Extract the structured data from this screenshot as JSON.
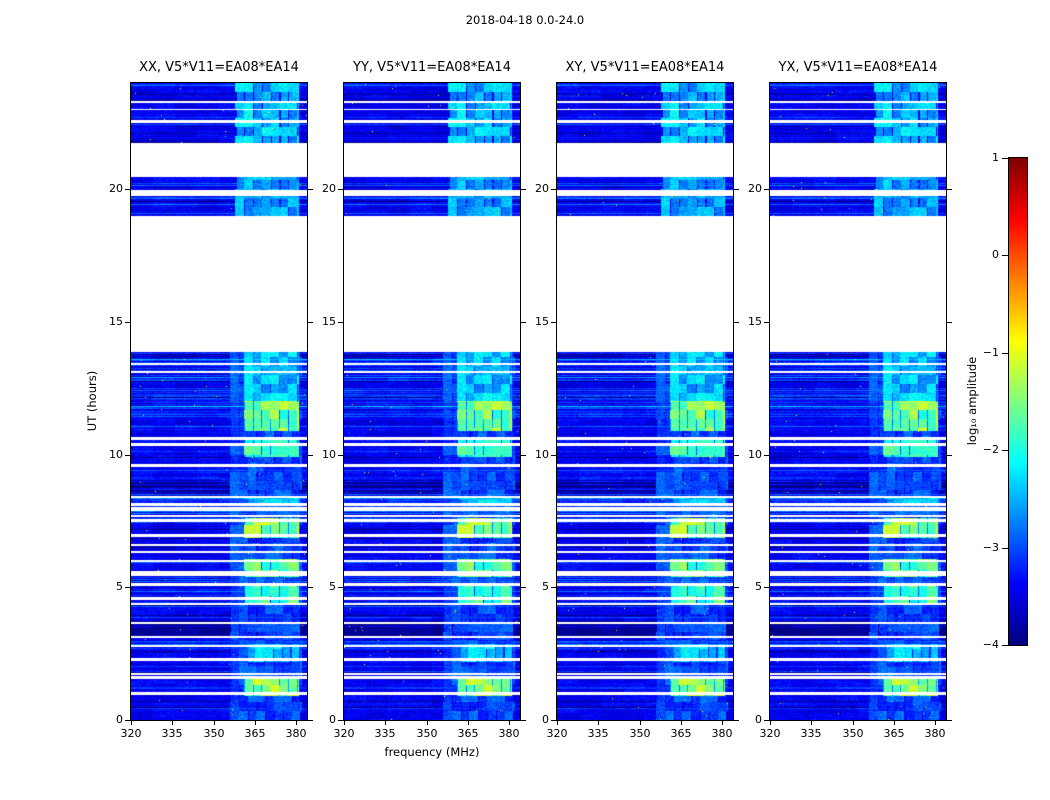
{
  "chart_data": {
    "type": "heatmap",
    "title": "2018-04-18 0.0-24.0",
    "xlabel": "frequency (MHz)",
    "ylabel": "UT (hours)",
    "xlim": [
      320,
      384
    ],
    "ylim": [
      0,
      24
    ],
    "xticks": [
      320,
      335,
      350,
      365,
      380
    ],
    "yticks": [
      0,
      5,
      10,
      15,
      20
    ],
    "grid": false,
    "panels": [
      {
        "label": "XX, V5*V11=EA08*EA14"
      },
      {
        "label": "YY, V5*V11=EA08*EA14"
      },
      {
        "label": "XY, V5*V11=EA08*EA14"
      },
      {
        "label": "YX, V5*V11=EA08*EA14"
      }
    ],
    "colorbar": {
      "label": "log₁₀ amplitude",
      "ticks": [
        1,
        0,
        -1,
        -2,
        -3,
        -4
      ],
      "tick_labels": [
        "1",
        "0",
        "−1",
        "−2",
        "−3",
        "−4"
      ],
      "vmin": -4,
      "vmax": 1,
      "colormap": "jet"
    },
    "background_level": -3.45,
    "data_segments_ut": [
      [
        0.0,
        13.86
      ],
      [
        18.99,
        19.74
      ],
      [
        19.97,
        20.46
      ],
      [
        21.74,
        24.0
      ]
    ],
    "gap_lines_ut": [
      [
        1.0,
        0.14
      ],
      [
        1.6,
        0.09
      ],
      [
        1.74,
        0.08
      ],
      [
        2.28,
        0.09
      ],
      [
        2.78,
        0.09
      ],
      [
        3.12,
        0.09
      ],
      [
        3.64,
        0.08
      ],
      [
        4.38,
        0.09
      ],
      [
        4.58,
        0.08
      ],
      [
        5.1,
        0.09
      ],
      [
        5.52,
        0.16
      ],
      [
        5.98,
        0.09
      ],
      [
        6.32,
        0.09
      ],
      [
        6.6,
        0.08
      ],
      [
        6.95,
        0.09
      ],
      [
        7.52,
        0.09
      ],
      [
        7.68,
        0.08
      ],
      [
        7.95,
        0.13
      ],
      [
        8.12,
        0.08
      ],
      [
        8.4,
        0.09
      ],
      [
        9.6,
        0.1
      ],
      [
        10.38,
        0.12
      ],
      [
        10.6,
        0.09
      ],
      [
        13.1,
        0.08
      ],
      [
        13.4,
        0.08
      ],
      [
        22.55,
        0.08
      ],
      [
        23.0,
        0.07
      ],
      [
        23.3,
        0.07
      ]
    ],
    "bright_features": [
      {
        "t": [
          0.0,
          13.86
        ],
        "f": [
          356,
          382
        ],
        "level": -3.05,
        "spread": 0.5
      },
      {
        "t": [
          21.74,
          24.0
        ],
        "f": [
          358,
          381
        ],
        "level": -2.45,
        "spread": 0.7
      },
      {
        "t": [
          18.99,
          20.46
        ],
        "f": [
          358,
          381
        ],
        "level": -2.6,
        "spread": 0.6
      },
      {
        "t": [
          0.9,
          1.55
        ],
        "f": [
          361,
          381
        ],
        "level": -1.45,
        "spread": 0.9
      },
      {
        "t": [
          2.2,
          2.85
        ],
        "f": [
          362,
          381
        ],
        "level": -2.3,
        "spread": 0.7
      },
      {
        "t": [
          4.38,
          5.05
        ],
        "f": [
          361,
          381
        ],
        "level": -1.85,
        "spread": 0.9
      },
      {
        "t": [
          5.4,
          6.05
        ],
        "f": [
          361,
          381
        ],
        "level": -1.7,
        "spread": 0.9
      },
      {
        "t": [
          6.85,
          7.62
        ],
        "f": [
          361,
          381
        ],
        "level": -1.45,
        "spread": 0.9
      },
      {
        "t": [
          8.05,
          8.45
        ],
        "f": [
          362,
          381
        ],
        "level": -2.5,
        "spread": 0.6
      },
      {
        "t": [
          9.9,
          10.55
        ],
        "f": [
          361,
          381
        ],
        "level": -1.85,
        "spread": 0.8
      },
      {
        "t": [
          10.9,
          12.0
        ],
        "f": [
          361,
          381
        ],
        "level": -1.55,
        "spread": 0.9
      },
      {
        "t": [
          12.0,
          13.86
        ],
        "f": [
          361,
          381
        ],
        "level": -2.45,
        "spread": 0.7
      }
    ],
    "texture_regions": [
      {
        "t": [
          11.4,
          13.6
        ],
        "boost": 0.4
      },
      {
        "t": [
          8.0,
          9.6
        ],
        "boost": 0.18
      }
    ],
    "dark_bands_ut": [
      [
        3.15,
        3.6
      ],
      [
        8.5,
        8.95
      ]
    ]
  }
}
